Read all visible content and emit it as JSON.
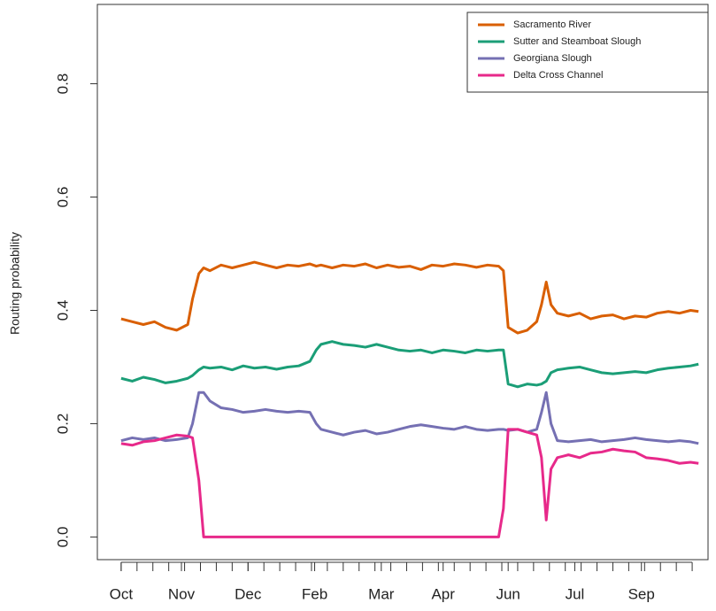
{
  "chart_data": {
    "type": "line",
    "y_label": "Routing probability",
    "x": [
      0,
      7,
      14,
      21,
      28,
      35,
      42,
      45,
      49,
      52,
      56,
      63,
      70,
      77,
      84,
      91,
      98,
      105,
      112,
      119,
      123,
      126,
      133,
      140,
      147,
      154,
      161,
      168,
      175,
      182,
      189,
      196,
      203,
      210,
      217,
      224,
      231,
      238,
      241,
      244,
      250,
      256,
      262,
      265,
      268,
      271,
      275,
      282,
      289,
      296,
      303,
      310,
      317,
      324,
      331,
      338,
      345,
      352,
      359,
      364
    ],
    "xlim": [
      -15,
      370
    ],
    "xticks": [
      {
        "value": 0,
        "label": "Oct"
      },
      {
        "value": 38,
        "label": "Nov"
      },
      {
        "value": 80,
        "label": "Dec"
      },
      {
        "value": 122,
        "label": "Feb"
      },
      {
        "value": 164,
        "label": "Mar"
      },
      {
        "value": 203,
        "label": "Apr"
      },
      {
        "value": 244,
        "label": "Jun"
      },
      {
        "value": 286,
        "label": "Jul"
      },
      {
        "value": 328,
        "label": "Sep"
      }
    ],
    "xminor_ticks": [
      0,
      10,
      20,
      30,
      40,
      50,
      60,
      70,
      80,
      90,
      100,
      110,
      120,
      130,
      140,
      150,
      160,
      170,
      180,
      190,
      200,
      210,
      220,
      230,
      240,
      250,
      260,
      270,
      280,
      290,
      300,
      310,
      320,
      330,
      340,
      350,
      360
    ],
    "ylim": [
      -0.04,
      0.94
    ],
    "yticks": [
      {
        "value": 0,
        "label": "0.0"
      },
      0.2,
      0.4,
      0.6,
      0.8
    ],
    "legend": "top-right",
    "series": [
      {
        "name": "Sacramento River",
        "color": "#d95f02",
        "values": [
          0.385,
          0.38,
          0.375,
          0.38,
          0.37,
          0.365,
          0.375,
          0.42,
          0.465,
          0.475,
          0.47,
          0.48,
          0.475,
          0.48,
          0.485,
          0.48,
          0.475,
          0.48,
          0.478,
          0.482,
          0.478,
          0.48,
          0.475,
          0.48,
          0.478,
          0.482,
          0.475,
          0.48,
          0.476,
          0.478,
          0.472,
          0.48,
          0.478,
          0.482,
          0.48,
          0.476,
          0.48,
          0.478,
          0.47,
          0.37,
          0.36,
          0.365,
          0.38,
          0.41,
          0.45,
          0.41,
          0.395,
          0.39,
          0.395,
          0.385,
          0.39,
          0.392,
          0.385,
          0.39,
          0.388,
          0.395,
          0.398,
          0.395,
          0.4,
          0.398
        ]
      },
      {
        "name": "Sutter and Steamboat Slough",
        "color": "#1b9e77",
        "values": [
          0.28,
          0.275,
          0.282,
          0.278,
          0.272,
          0.275,
          0.28,
          0.285,
          0.295,
          0.3,
          0.298,
          0.3,
          0.295,
          0.302,
          0.298,
          0.3,
          0.296,
          0.3,
          0.302,
          0.31,
          0.33,
          0.34,
          0.345,
          0.34,
          0.338,
          0.335,
          0.34,
          0.335,
          0.33,
          0.328,
          0.33,
          0.325,
          0.33,
          0.328,
          0.325,
          0.33,
          0.328,
          0.33,
          0.33,
          0.27,
          0.265,
          0.27,
          0.268,
          0.27,
          0.275,
          0.29,
          0.295,
          0.298,
          0.3,
          0.295,
          0.29,
          0.288,
          0.29,
          0.292,
          0.29,
          0.295,
          0.298,
          0.3,
          0.302,
          0.305
        ]
      },
      {
        "name": "Georgiana Slough",
        "color": "#7570b3",
        "values": [
          0.17,
          0.175,
          0.172,
          0.175,
          0.17,
          0.172,
          0.175,
          0.2,
          0.255,
          0.255,
          0.24,
          0.228,
          0.225,
          0.22,
          0.222,
          0.225,
          0.222,
          0.22,
          0.222,
          0.22,
          0.2,
          0.19,
          0.185,
          0.18,
          0.185,
          0.188,
          0.182,
          0.185,
          0.19,
          0.195,
          0.198,
          0.195,
          0.192,
          0.19,
          0.195,
          0.19,
          0.188,
          0.19,
          0.19,
          0.188,
          0.19,
          0.185,
          0.19,
          0.22,
          0.255,
          0.2,
          0.17,
          0.168,
          0.17,
          0.172,
          0.168,
          0.17,
          0.172,
          0.175,
          0.172,
          0.17,
          0.168,
          0.17,
          0.168,
          0.165
        ]
      },
      {
        "name": "Delta Cross Channel",
        "color": "#e7298a",
        "values": [
          0.165,
          0.162,
          0.168,
          0.17,
          0.175,
          0.18,
          0.178,
          0.175,
          0.1,
          0,
          0,
          0,
          0,
          0,
          0,
          0,
          0,
          0,
          0,
          0,
          0,
          0,
          0,
          0,
          0,
          0,
          0,
          0,
          0,
          0,
          0,
          0,
          0,
          0,
          0,
          0,
          0,
          0,
          0.05,
          0.19,
          0.19,
          0.185,
          0.18,
          0.14,
          0.03,
          0.12,
          0.14,
          0.145,
          0.14,
          0.148,
          0.15,
          0.155,
          0.152,
          0.15,
          0.14,
          0.138,
          0.135,
          0.13,
          0.132,
          0.13
        ]
      }
    ]
  }
}
